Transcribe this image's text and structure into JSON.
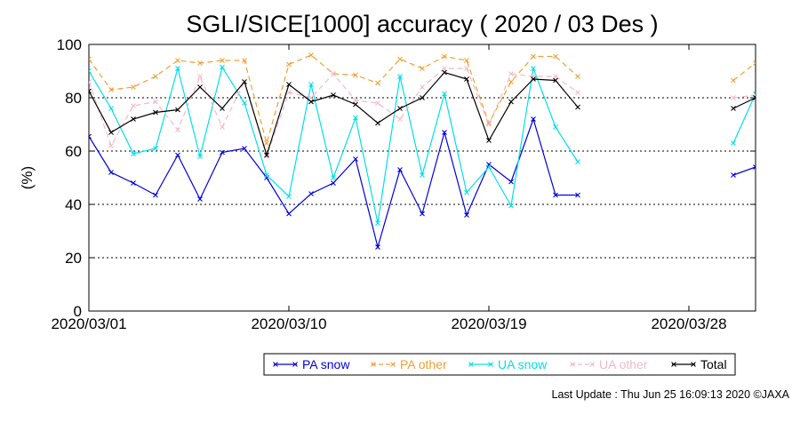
{
  "chart_data": {
    "type": "line",
    "title": "SGLI/SICE[1000] accuracy ( 2020 / 03 Des )",
    "ylabel": "(%)",
    "xlabel": "",
    "ylim": [
      0,
      100
    ],
    "yticks": [
      0,
      20,
      40,
      60,
      80,
      100
    ],
    "xlim": [
      "2020/03/01",
      "2020/03/31"
    ],
    "xticks": [
      "2020/03/01",
      "2020/03/10",
      "2020/03/19",
      "2020/03/28"
    ],
    "grid": "horizontal dotted at 20, 40, 60, 80",
    "legend_position": "bottom-right",
    "x": [
      "2020/03/01",
      "2020/03/02",
      "2020/03/03",
      "2020/03/04",
      "2020/03/05",
      "2020/03/06",
      "2020/03/07",
      "2020/03/08",
      "2020/03/09",
      "2020/03/10",
      "2020/03/11",
      "2020/03/12",
      "2020/03/13",
      "2020/03/14",
      "2020/03/15",
      "2020/03/16",
      "2020/03/17",
      "2020/03/18",
      "2020/03/19",
      "2020/03/20",
      "2020/03/21",
      "2020/03/22",
      "2020/03/23",
      "2020/03/24",
      "2020/03/25",
      "2020/03/26",
      "2020/03/27",
      "2020/03/28",
      "2020/03/29",
      "2020/03/30",
      "2020/03/31"
    ],
    "series": [
      {
        "name": "PA snow",
        "color": "#0000dd",
        "dash": "solid",
        "values": [
          65.5,
          52,
          48,
          43.5,
          58.5,
          42,
          59.5,
          61,
          50,
          36.5,
          44,
          48,
          57,
          24,
          53,
          36.5,
          67,
          36,
          55,
          48.5,
          72,
          43.5,
          43.5,
          null,
          null,
          null,
          null,
          null,
          null,
          51,
          54
        ]
      },
      {
        "name": "PA other",
        "color": "#f0a030",
        "dash": "dashed",
        "values": [
          94.5,
          83,
          84,
          88,
          94,
          93,
          94,
          94,
          63,
          92.5,
          96,
          89,
          88.5,
          85.5,
          94.5,
          91,
          95.5,
          94,
          70.5,
          86,
          95.5,
          95.5,
          88,
          null,
          null,
          null,
          null,
          null,
          null,
          86.5,
          93
        ]
      },
      {
        "name": "UA snow",
        "color": "#00e0e8",
        "dash": "solid",
        "values": [
          90,
          76,
          59,
          61,
          91,
          58,
          91.5,
          78,
          51,
          43,
          85,
          50,
          72.5,
          33,
          88,
          51,
          81.5,
          44.5,
          54,
          39.5,
          91,
          69,
          56,
          null,
          null,
          null,
          null,
          null,
          null,
          63,
          81.5
        ]
      },
      {
        "name": "UA other",
        "color": "#f4b8c8",
        "dash": "dashed",
        "values": [
          86,
          62,
          77,
          78.5,
          68,
          88,
          69,
          86,
          58,
          82,
          80,
          89,
          79,
          78,
          72,
          84,
          91,
          91,
          70,
          89,
          88,
          88,
          82,
          null,
          null,
          null,
          null,
          null,
          null,
          80,
          81
        ]
      },
      {
        "name": "Total",
        "color": "#000000",
        "dash": "solid",
        "values": [
          82.5,
          67,
          72,
          74.5,
          75.5,
          84,
          76,
          86,
          58.5,
          85,
          78.5,
          81,
          77.5,
          70.5,
          76,
          80,
          89.5,
          87,
          64,
          78.5,
          87,
          86.5,
          76.5,
          null,
          null,
          null,
          null,
          null,
          null,
          76,
          80
        ]
      }
    ]
  },
  "footer": {
    "text": "Last Update : Thu Jun 25 16:09:13 2020  ©JAXA"
  }
}
